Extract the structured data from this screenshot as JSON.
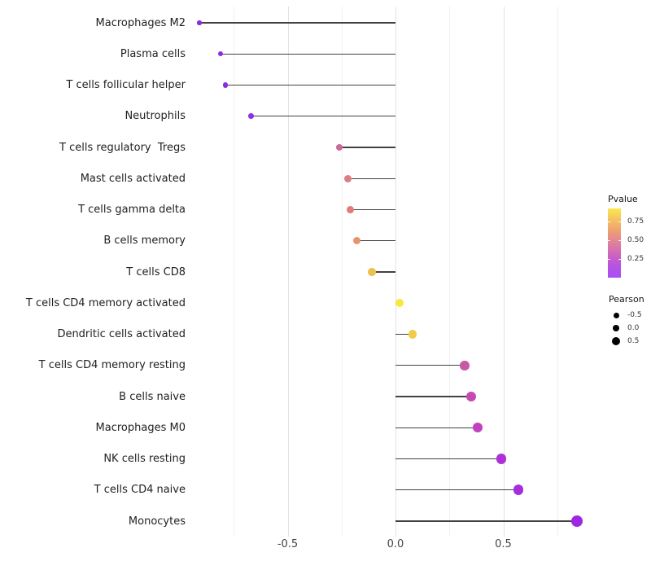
{
  "chart_data": {
    "type": "scatter",
    "style": "lollipop",
    "orientation": "horizontal",
    "title": "",
    "xlabel": "",
    "ylabel": "",
    "xlim": [
      -1.0,
      0.925
    ],
    "grid": true,
    "x_ticks": [
      {
        "value": -0.5,
        "label": "-0.5"
      },
      {
        "value": 0.0,
        "label": "0.0"
      },
      {
        "value": 0.5,
        "label": "0.5"
      }
    ],
    "x_minor_gridlines": [
      -0.75,
      -0.25,
      0.25,
      0.75
    ],
    "rows": [
      {
        "label": "Macrophages M2",
        "pearson": -0.91,
        "point_color": "#8A2BE0"
      },
      {
        "label": "Plasma cells",
        "pearson": -0.81,
        "point_color": "#8E2CE2"
      },
      {
        "label": "T cells follicular helper",
        "pearson": -0.79,
        "point_color": "#8C2AE0"
      },
      {
        "label": "Neutrophils",
        "pearson": -0.67,
        "point_color": "#9130E0"
      },
      {
        "label": "T cells regulatory  Tregs",
        "pearson": -0.26,
        "point_color": "#C9699C"
      },
      {
        "label": "Mast cells activated",
        "pearson": -0.22,
        "point_color": "#DF7E82"
      },
      {
        "label": "T cells gamma delta",
        "pearson": -0.21,
        "point_color": "#DF7D7E"
      },
      {
        "label": "B cells memory",
        "pearson": -0.18,
        "point_color": "#E6946F"
      },
      {
        "label": "T cells CD8",
        "pearson": -0.11,
        "point_color": "#EDC14D"
      },
      {
        "label": "T cells CD4 memory activated",
        "pearson": 0.02,
        "point_color": "#F5E93C"
      },
      {
        "label": "Dendritic cells activated",
        "pearson": 0.08,
        "point_color": "#F0CC47"
      },
      {
        "label": "T cells CD4 memory resting",
        "pearson": 0.32,
        "point_color": "#C75AA4"
      },
      {
        "label": "B cells naive",
        "pearson": 0.35,
        "point_color": "#C54AB2"
      },
      {
        "label": "Macrophages M0",
        "pearson": 0.38,
        "point_color": "#C240BE"
      },
      {
        "label": "NK cells resting",
        "pearson": 0.49,
        "point_color": "#AC32D8"
      },
      {
        "label": "T cells CD4 naive",
        "pearson": 0.57,
        "point_color": "#A52CDF"
      },
      {
        "label": "Monocytes",
        "pearson": 0.84,
        "point_color": "#9C28E2"
      }
    ],
    "legend_pvalue": {
      "title": "Pvalue",
      "ticks": [
        {
          "label": "0.75",
          "frac_from_top": 0.19
        },
        {
          "label": "0.50",
          "frac_from_top": 0.46
        },
        {
          "label": "0.25",
          "frac_from_top": 0.73
        }
      ],
      "gradient_colors": [
        "#F9E94E",
        "#F5C55F",
        "#EFA071",
        "#E0809C",
        "#CB63C0",
        "#B452E4",
        "#A950F4"
      ],
      "gradient_positions": [
        0,
        15,
        32,
        50,
        68,
        85,
        100
      ]
    },
    "legend_pearson": {
      "title": "Pearson",
      "items": [
        {
          "label": "-0.5",
          "value": -0.5
        },
        {
          "label": "0.0",
          "value": 0.0
        },
        {
          "label": "0.5",
          "value": 0.5
        }
      ]
    }
  }
}
